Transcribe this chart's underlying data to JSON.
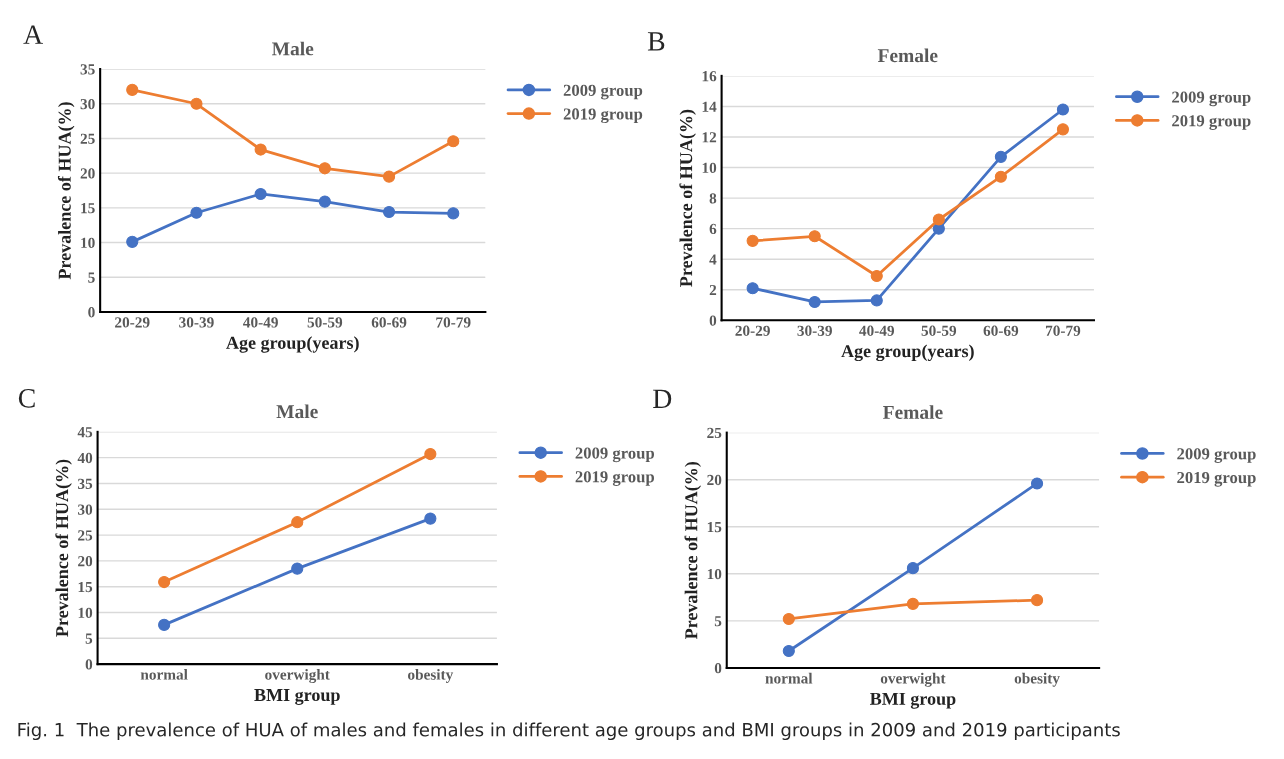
{
  "chart_data": [
    {
      "type": "line",
      "title": "Male",
      "xlabel": "Age group(years)",
      "ylabel": "Prevalence of HUA(%)",
      "annotations": [
        "A"
      ],
      "categories": [
        "20-29",
        "30-39",
        "40-49",
        "50-59",
        "60-69",
        "70-79"
      ],
      "ylim": [
        0,
        35
      ],
      "yticks": [
        0,
        5,
        10,
        15,
        20,
        25,
        30,
        35
      ],
      "grid": "y",
      "legend": "right",
      "marker": "circle",
      "line_style": "solid",
      "series": [
        {
          "name": "2009 group",
          "color": "#4472c4",
          "values": [
            10.1,
            14.3,
            17.0,
            15.9,
            14.4,
            14.2
          ]
        },
        {
          "name": "2019 group",
          "color": "#ed7d31",
          "values": [
            32.0,
            30.0,
            23.4,
            20.7,
            19.5,
            24.6
          ]
        }
      ]
    },
    {
      "type": "line",
      "title": "Female",
      "xlabel": "Age group(years)",
      "ylabel": "Prevalence of HUA(%)",
      "annotations": [
        "B"
      ],
      "categories": [
        "20-29",
        "30-39",
        "40-49",
        "50-59",
        "60-69",
        "70-79"
      ],
      "ylim": [
        0,
        16
      ],
      "yticks": [
        0,
        2,
        4,
        6,
        8,
        10,
        12,
        14,
        16
      ],
      "grid": "y",
      "legend": "right",
      "marker": "circle",
      "line_style": "solid",
      "series": [
        {
          "name": "2009 group",
          "color": "#4472c4",
          "values": [
            2.1,
            1.2,
            1.3,
            6.0,
            10.7,
            13.8
          ]
        },
        {
          "name": "2019 group",
          "color": "#ed7d31",
          "values": [
            5.2,
            5.5,
            2.9,
            6.6,
            9.4,
            12.5
          ]
        }
      ]
    },
    {
      "type": "line",
      "title": "Male",
      "xlabel": "BMI group",
      "ylabel": "Prevalence of HUA(%)",
      "annotations": [
        "C"
      ],
      "categories": [
        "normal",
        "overwight",
        "obesity"
      ],
      "ylim": [
        0,
        45
      ],
      "yticks": [
        0,
        5,
        10,
        15,
        20,
        25,
        30,
        35,
        40,
        45
      ],
      "grid": "y",
      "legend": "right",
      "marker": "circle",
      "line_style": "solid",
      "series": [
        {
          "name": "2009 group",
          "color": "#4472c4",
          "values": [
            7.6,
            18.5,
            28.2
          ]
        },
        {
          "name": "2019 group",
          "color": "#ed7d31",
          "values": [
            15.9,
            27.5,
            40.7
          ]
        }
      ]
    },
    {
      "type": "line",
      "title": "Female",
      "xlabel": "BMI group",
      "ylabel": "Prevalence of HUA(%)",
      "annotations": [
        "D",
        "Fig. 1  The prevalence of HUA of males and females in different age groups and BMI groups in 2009 and 2019 participants"
      ],
      "categories": [
        "normal",
        "overwight",
        "obesity"
      ],
      "ylim": [
        0,
        25
      ],
      "yticks": [
        0,
        5,
        10,
        15,
        20,
        25
      ],
      "grid": "y",
      "legend": "right",
      "marker": "circle",
      "line_style": "solid",
      "series": [
        {
          "name": "2009 group",
          "color": "#4472c4",
          "values": [
            1.8,
            10.6,
            19.6
          ]
        },
        {
          "name": "2019 group",
          "color": "#ed7d31",
          "values": [
            5.2,
            6.8,
            7.2
          ]
        }
      ]
    }
  ]
}
